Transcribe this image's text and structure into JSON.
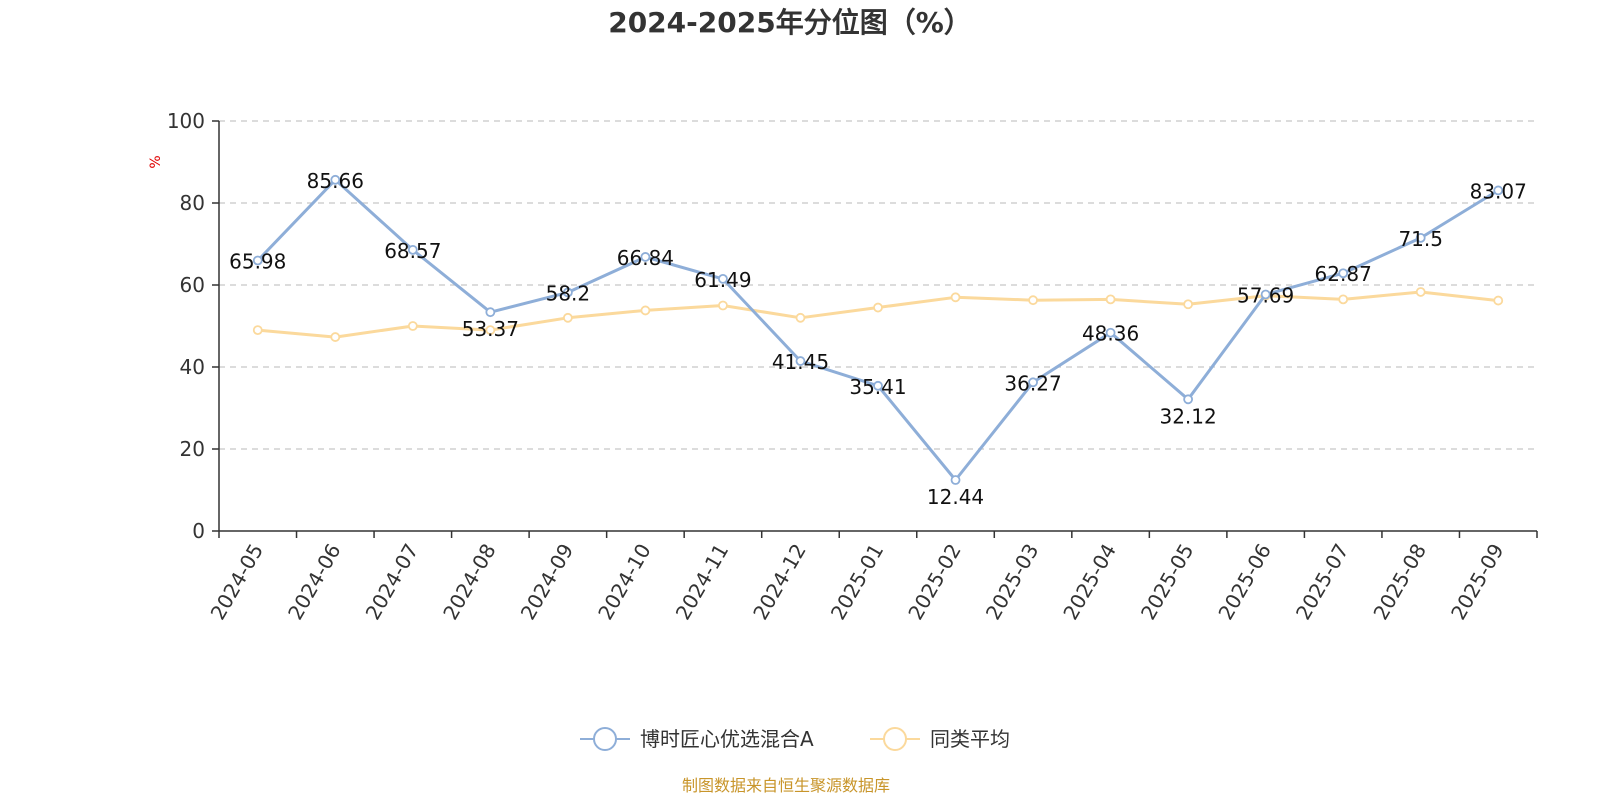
{
  "chart_data": {
    "type": "line",
    "title": "2024-2025年分位图（%）",
    "ylabel": "%",
    "ylim": [
      0,
      100
    ],
    "yticks": [
      0,
      20,
      40,
      60,
      80,
      100
    ],
    "grid": true,
    "legend_position": "bottom-center",
    "categories": [
      "2024-05",
      "2024-06",
      "2024-07",
      "2024-08",
      "2024-09",
      "2024-10",
      "2024-11",
      "2024-12",
      "2025-01",
      "2025-02",
      "2025-03",
      "2025-04",
      "2025-05",
      "2025-06",
      "2025-07",
      "2025-08",
      "2025-09"
    ],
    "series": [
      {
        "name": "博时匠心优选混合A",
        "color": "#8eaed8",
        "values": [
          65.98,
          85.66,
          68.57,
          53.37,
          58.2,
          66.84,
          61.49,
          41.45,
          35.41,
          12.44,
          36.27,
          48.36,
          32.12,
          57.69,
          62.87,
          71.5,
          83.07
        ],
        "labels": [
          "65.98",
          "85.66",
          "68.57",
          "53.37",
          "58.2",
          "66.84",
          "61.49",
          "41.45",
          "35.41",
          "12.44",
          "36.27",
          "48.36",
          "32.12",
          "57.69",
          "62.87",
          "71.5",
          "83.07"
        ]
      },
      {
        "name": "同类平均",
        "color": "#fbd99c",
        "values": [
          49.0,
          47.3,
          50.0,
          49.0,
          52.0,
          53.8,
          55.0,
          52.0,
          54.5,
          57.0,
          56.3,
          56.5,
          55.3,
          57.4,
          56.5,
          58.3,
          56.2
        ]
      }
    ],
    "source": "制图数据来自恒生聚源数据库"
  }
}
